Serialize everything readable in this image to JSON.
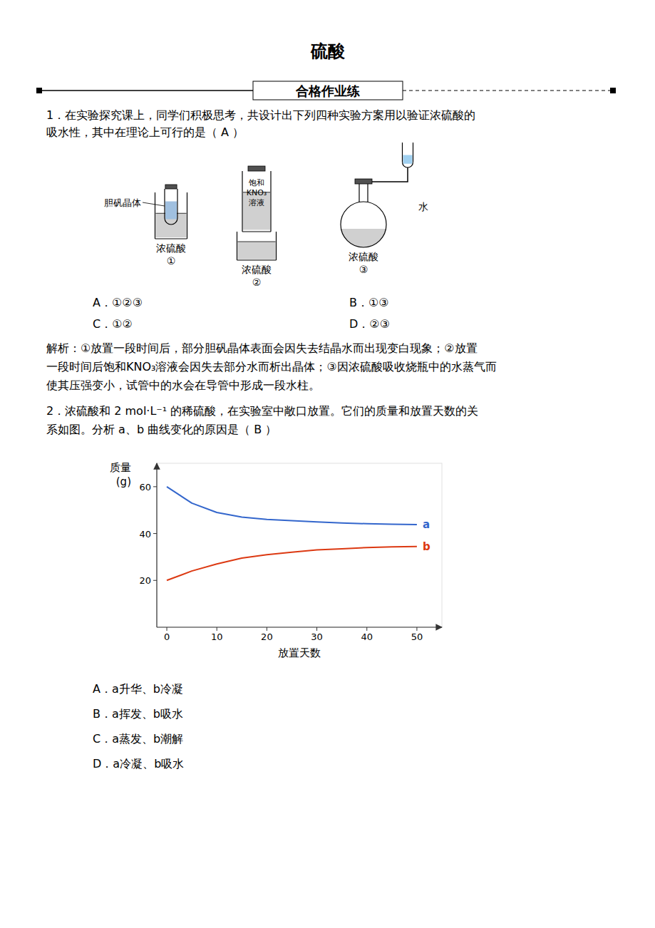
{
  "chart_data": {
    "type": "line",
    "title": "硫酸",
    "subtitle": "合格作业练",
    "annotations": [
      "1．在实验探究课上，同学们积极思考，共设计出下列四种实验方案用以验证浓硫酸的\n吸水性，其中在理论上可行的是（  A  ）",
      "胆矾晶体",
      "浓硫酸",
      "①",
      "饱和\nKNO₃\n溶液",
      "浓硫酸",
      "②",
      "浓硫酸",
      "③",
      "水",
      "A．①②③",
      "B．①③",
      "C．①②",
      "D．②③",
      "解析：①放置一段时间后，部分胆矾晶体表面会因失去结晶水而出现变白现象；②放置\n一段时间后饱和KNO₃溶液会因失去部分水而析出晶体；③因浓硫酸吸收烧瓶中的水蒸气而\n使其压强变小，试管中的水会在导管中形成一段水柱。",
      "2．浓硫酸和 2 mol·L⁻¹ 的稀硫酸，在实验室中敞口放置。它们的质量和放置天数的关\n系如图。分析 a、b 曲线变化的原因是（  B  ）",
      "A．a升华、b冷凝",
      "B．a挥发、b吸水",
      "C．a蒸发、b潮解",
      "D．a冷凝、b吸水"
    ],
    "x_label": "放置天数",
    "y_label": "质量\n(g)",
    "x": [
      0,
      5,
      10,
      15,
      20,
      25,
      30,
      35,
      40,
      45,
      50
    ],
    "series": [
      {
        "name": "a",
        "values": [
          60,
          53,
          49,
          47,
          46,
          45.5,
          45,
          44.5,
          44.2,
          44,
          43.8
        ]
      },
      {
        "name": "b",
        "values": [
          20,
          24,
          27,
          29.5,
          31,
          32,
          33,
          33.5,
          34,
          34.3,
          34.5
        ]
      }
    ],
    "xlim": [
      -2,
      55
    ],
    "ylim": [
      0,
      70
    ],
    "xticks": [
      0,
      10,
      20,
      30,
      40,
      50
    ],
    "yticks": [
      20,
      40,
      60
    ]
  }
}
